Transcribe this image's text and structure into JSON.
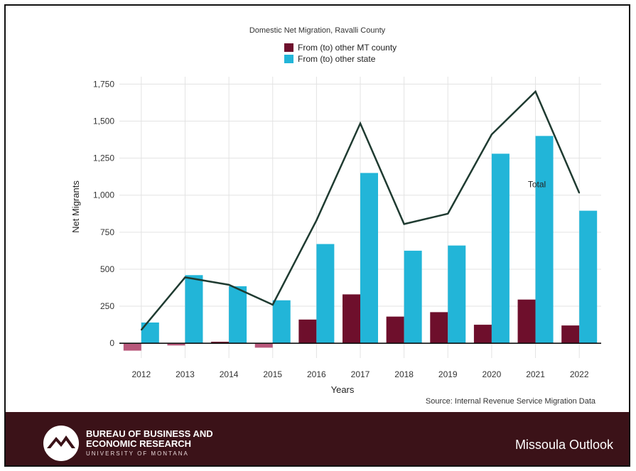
{
  "chart_data": {
    "type": "bar",
    "title": "Domestic Net Migration, Ravalli County",
    "xlabel": "Years",
    "ylabel": "Net Migrants",
    "categories": [
      "2012",
      "2013",
      "2014",
      "2015",
      "2016",
      "2017",
      "2018",
      "2019",
      "2020",
      "2021",
      "2022"
    ],
    "ylim": [
      -100,
      1800
    ],
    "yticks": [
      0,
      250,
      500,
      750,
      1000,
      1250,
      1500,
      1750
    ],
    "ytick_labels": [
      "0",
      "250",
      "500",
      "750",
      "1,000",
      "1,250",
      "1,500",
      "1,750"
    ],
    "series": [
      {
        "name": "From (to) other MT county",
        "type": "bar",
        "color": "#6e0f2c",
        "negative_color": "#b8577a",
        "values": [
          -50,
          -15,
          10,
          -30,
          160,
          330,
          180,
          210,
          125,
          295,
          120
        ]
      },
      {
        "name": "From (to) other state",
        "type": "bar",
        "color": "#22b5d8",
        "values": [
          140,
          460,
          385,
          290,
          670,
          1150,
          625,
          660,
          1280,
          1400,
          895
        ]
      },
      {
        "name": "Total",
        "type": "line",
        "color": "#1f3b31",
        "values": [
          90,
          445,
          395,
          260,
          830,
          1485,
          805,
          875,
          1410,
          1700,
          1015
        ]
      }
    ],
    "line_label": "Total",
    "legend_position": "top-center",
    "grid": true,
    "source": "Source: Internal Revenue Service Migration Data"
  },
  "footer": {
    "brand_line1": "BUREAU OF BUSINESS AND",
    "brand_line2": "ECONOMIC RESEARCH",
    "brand_line3": "UNIVERSITY OF MONTANA",
    "right_text": "Missoula Outlook",
    "background": "#3b1218"
  }
}
